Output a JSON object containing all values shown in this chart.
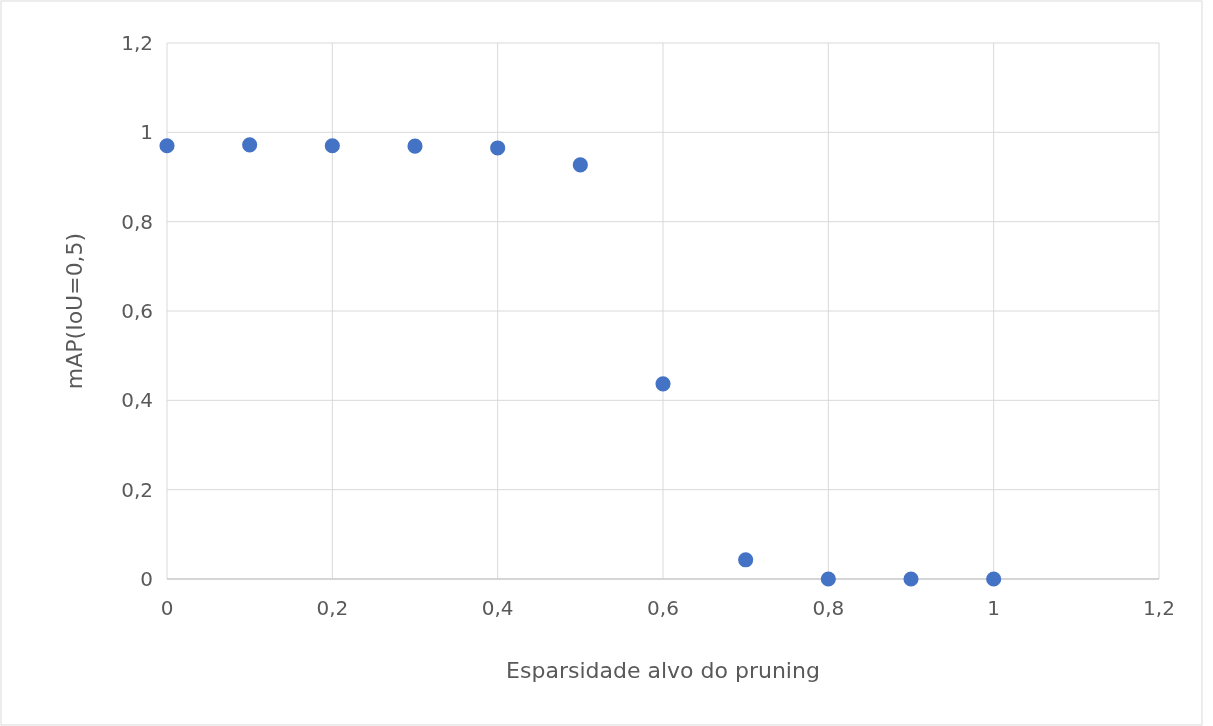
{
  "chart_data": {
    "type": "scatter",
    "xlabel": "Esparsidade alvo do pruning",
    "ylabel": "mAP(IoU=0,5)",
    "x": [
      0,
      0.1,
      0.2,
      0.3,
      0.4,
      0.5,
      0.6,
      0.7,
      0.8,
      0.9,
      1
    ],
    "series": [
      {
        "color": "#4472c4",
        "values": [
          0.97,
          0.972,
          0.97,
          0.969,
          0.965,
          0.927,
          0.437,
          0.043,
          0,
          0,
          0
        ]
      }
    ],
    "xlim": [
      0,
      1.2
    ],
    "ylim": [
      0,
      1.2
    ],
    "xticks": [
      0,
      {
        "value": 0.2,
        "label": "0,2"
      },
      {
        "value": 0.4,
        "label": "0,4"
      },
      {
        "value": 0.6,
        "label": "0,6"
      },
      {
        "value": 0.8,
        "label": "0,8"
      },
      1,
      {
        "value": 1.2,
        "label": "1,2"
      }
    ],
    "yticks": [
      0,
      {
        "value": 0.2,
        "label": "0,2"
      },
      {
        "value": 0.4,
        "label": "0,4"
      },
      {
        "value": 0.6,
        "label": "0,6"
      },
      {
        "value": 0.8,
        "label": "0,8"
      },
      1,
      {
        "value": 1.2,
        "label": "1,2"
      }
    ],
    "grid": true,
    "marker": "circle"
  }
}
